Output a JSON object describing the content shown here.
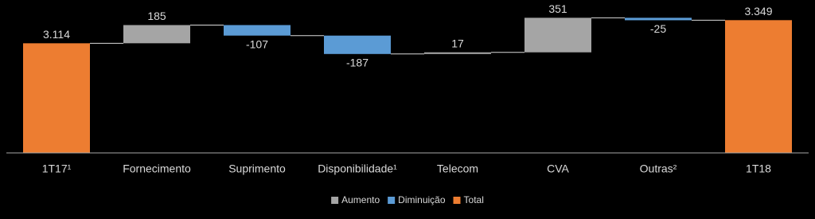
{
  "chart_data": {
    "type": "waterfall",
    "categories": [
      "1T17¹",
      "Fornecimento",
      "Suprimento",
      "Disponibilidade¹",
      "Telecom",
      "CVA",
      "Outras²",
      "1T18"
    ],
    "values": [
      3114,
      185,
      -107,
      -187,
      17,
      351,
      -25,
      3349
    ],
    "value_labels": [
      "3.114",
      "185",
      "-107",
      "-187",
      "17",
      "351",
      "-25",
      "3.349"
    ],
    "total_indices": [
      0,
      7
    ],
    "ylim": [
      2000,
      3400
    ],
    "legend": [
      {
        "name": "Aumento",
        "color": "#a5a5a5"
      },
      {
        "name": "Diminuição",
        "color": "#5b9bd5"
      },
      {
        "name": "Total",
        "color": "#ed7d31"
      }
    ]
  }
}
